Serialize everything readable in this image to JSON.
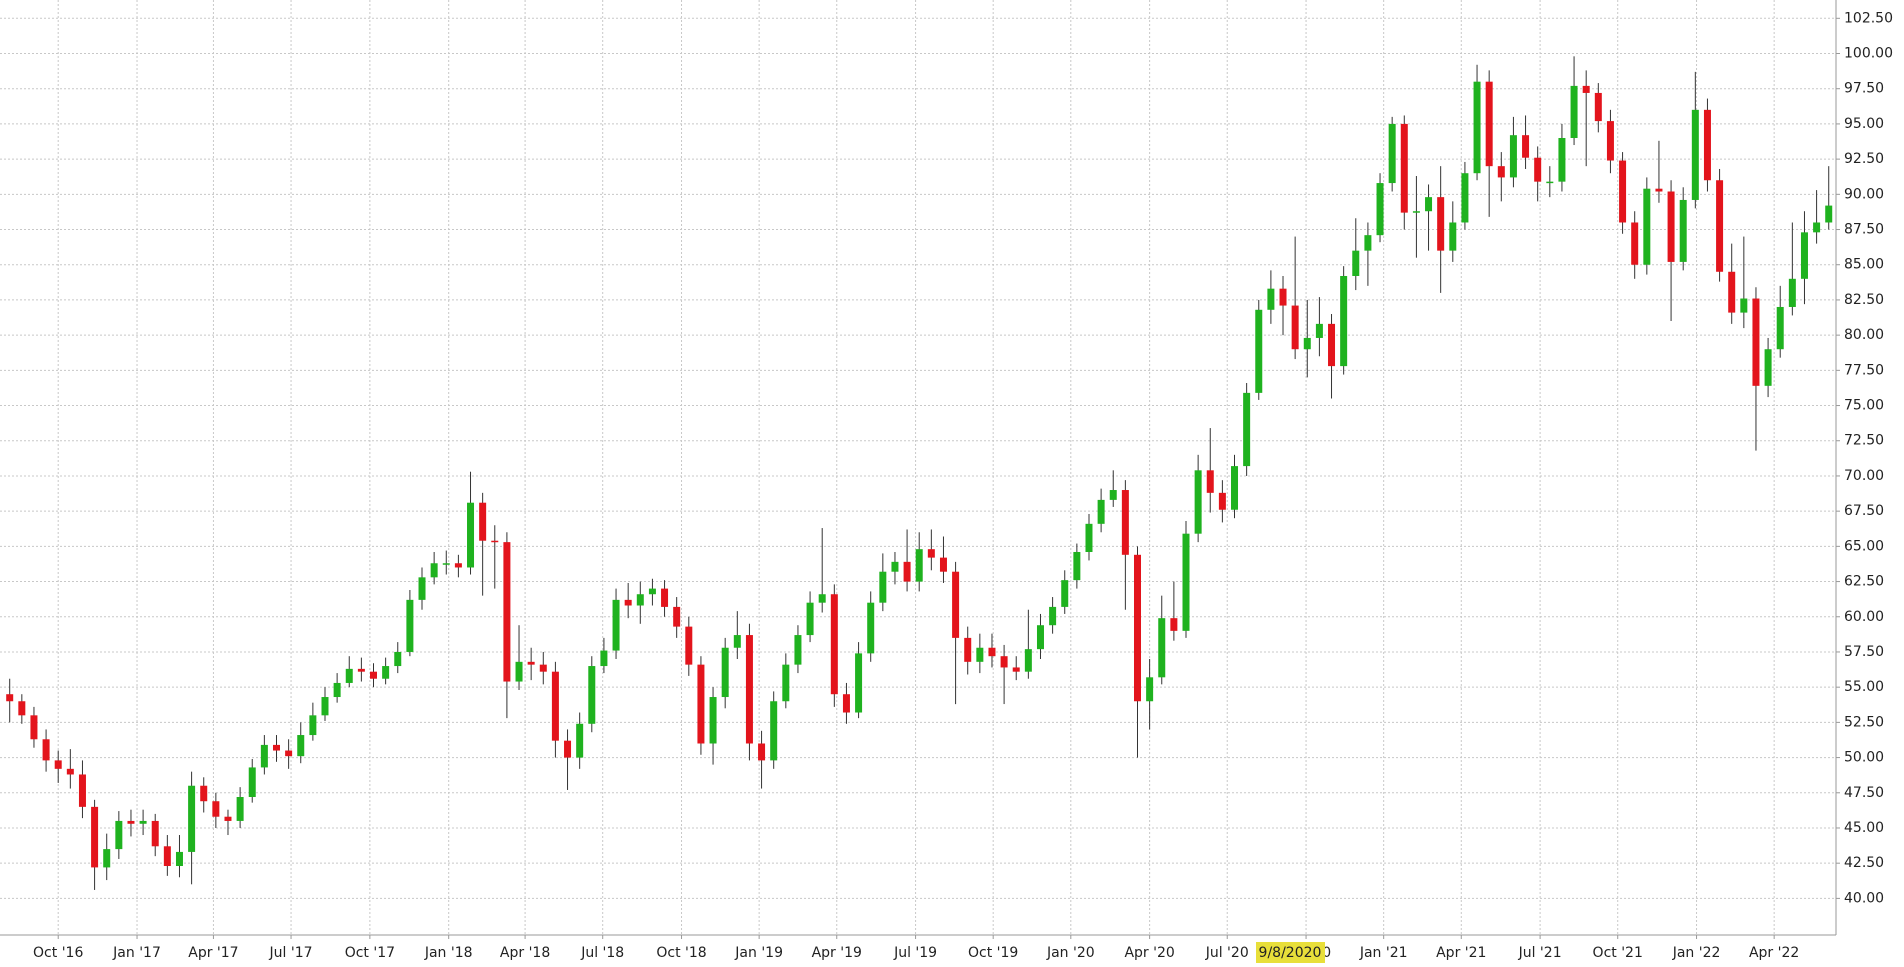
{
  "chart_data": {
    "type": "candlestick",
    "up_color": "#1fb21f",
    "down_color": "#e3141c",
    "wick_color": "#333333",
    "grid": true,
    "crosshair_label": "9/8/2020",
    "open": [
      54.5,
      54,
      53,
      51.3,
      49.8,
      49.2,
      48.8,
      46.5,
      42.2,
      43.5,
      45.5,
      45.3,
      45.5,
      43.7,
      42.3,
      43.3,
      48,
      46.9,
      45.8,
      45.5,
      47.2,
      49.3,
      50.9,
      50.5,
      50.1,
      51.6,
      53,
      54.3,
      55.3,
      56.3,
      56.1,
      55.6,
      56.5,
      57.5,
      61.2,
      62.8,
      63.8,
      63.8,
      63.5,
      68.1,
      65.4,
      65.3,
      55.4,
      56.8,
      56.6,
      56.1,
      51.2,
      50,
      52.4,
      56.5,
      57.6,
      61.2,
      60.8,
      61.6,
      62,
      60.7,
      59.3,
      56.6,
      51,
      54.3,
      57.8,
      58.7,
      51,
      49.8,
      54,
      56.6,
      58.7,
      61,
      61.6,
      54.5,
      53.2,
      57.4,
      61,
      63.2,
      63.9,
      62.5,
      64.8,
      64.2,
      63.2,
      58.5,
      56.8,
      57.8,
      57.2,
      56.4,
      56.1,
      57.7,
      59.4,
      60.7,
      62.6,
      64.6,
      66.6,
      68.3,
      69,
      64.4,
      54,
      55.7,
      59.9,
      59,
      65.9,
      70.4,
      68.8,
      67.6,
      70.7,
      75.9,
      81.8,
      83.3,
      82.1,
      79,
      79.8,
      80.8,
      77.8,
      84.2,
      86,
      87.1,
      90.8,
      95,
      88.7,
      88.8,
      89.8,
      86,
      88,
      91.5,
      98,
      92,
      91.2,
      94.2,
      92.6,
      90.9,
      90.9,
      94,
      97.7,
      97.2,
      95.2,
      92.4,
      88,
      85,
      90.4,
      90.2,
      85.2,
      89.6,
      96,
      91,
      84.5,
      81.6,
      82.6,
      76.4,
      79,
      82,
      84,
      87.3,
      88
    ],
    "high": [
      55.6,
      54.5,
      53.6,
      52,
      50.5,
      50.6,
      49.8,
      47,
      44.6,
      46.2,
      46.3,
      46.3,
      46,
      44.5,
      44.5,
      49,
      48.6,
      47.5,
      46.3,
      47.9,
      49.9,
      51.6,
      51.6,
      51.3,
      52.5,
      53.9,
      55,
      56,
      57.2,
      57.1,
      56.7,
      57.1,
      58.2,
      61.9,
      63.5,
      64.6,
      64.7,
      64.4,
      70.3,
      68.8,
      66.5,
      66,
      59.4,
      57.8,
      57.5,
      56.8,
      52,
      53.2,
      57.2,
      58.5,
      62,
      62.4,
      62.5,
      62.7,
      62.6,
      61.4,
      60,
      57.2,
      55,
      58.5,
      60.4,
      59.5,
      51.9,
      54.7,
      57.4,
      59.4,
      61.8,
      66.3,
      62.3,
      55.3,
      58.2,
      61.8,
      64.5,
      64.6,
      66.2,
      66,
      66.2,
      65.7,
      63.9,
      59.3,
      58.8,
      58.8,
      58,
      57.2,
      60.5,
      60.2,
      61.4,
      63.3,
      65.2,
      67.3,
      69.1,
      70.4,
      69.7,
      65,
      57,
      61.5,
      62.5,
      66.8,
      71.5,
      73.4,
      69.7,
      71.5,
      76.6,
      82.5,
      84.6,
      84.2,
      87,
      82.5,
      82.7,
      81.5,
      84.9,
      88.3,
      88,
      91.5,
      95.5,
      95.6,
      91.3,
      90.7,
      92,
      89.5,
      92.3,
      99.2,
      98.8,
      93,
      95.5,
      95.6,
      93.4,
      92,
      95,
      99.8,
      98.8,
      97.9,
      96,
      93,
      88.8,
      91.2,
      93.8,
      91,
      90.5,
      98.7,
      96.8,
      91.8,
      86.5,
      87,
      83.4,
      79.8,
      83.5,
      88,
      88.8,
      90.3,
      92
    ],
    "low": [
      52.5,
      52.4,
      50.7,
      49,
      48.2,
      47.8,
      45.7,
      40.6,
      41.3,
      42.8,
      44.4,
      44.5,
      43,
      41.6,
      41.5,
      41,
      46.1,
      45,
      44.5,
      45,
      46.8,
      48.8,
      49.7,
      49.2,
      49.6,
      51.2,
      52.6,
      53.9,
      55,
      55.4,
      55,
      55.2,
      56,
      57.2,
      60.5,
      62.3,
      63,
      62.8,
      63,
      61.5,
      62,
      52.8,
      54.8,
      55.5,
      55.2,
      50,
      47.7,
      49.2,
      51.8,
      56,
      57,
      59.9,
      59.5,
      60.8,
      60,
      58.5,
      55.8,
      50.2,
      49.5,
      53.5,
      57,
      49.8,
      47.8,
      49.2,
      53.5,
      56,
      58.2,
      60.3,
      53.6,
      52.4,
      52.8,
      56.8,
      60.4,
      62.3,
      61.8,
      61.8,
      63.3,
      62.4,
      53.8,
      55.9,
      56,
      56.4,
      53.8,
      55.5,
      55.6,
      57,
      58.8,
      60.2,
      62,
      64,
      66,
      67.8,
      60.5,
      50,
      52,
      55.2,
      58.3,
      58.5,
      65.3,
      67.4,
      66.7,
      67,
      70,
      75.4,
      80.8,
      80,
      78.3,
      77,
      78.5,
      75.5,
      77.2,
      83.2,
      83.5,
      86.6,
      90.2,
      87.5,
      85.5,
      86,
      83,
      85.2,
      87.5,
      91,
      88.4,
      89.5,
      90.5,
      91.8,
      89.5,
      89.8,
      90.2,
      93.5,
      92,
      94.4,
      91.5,
      87.2,
      84,
      84.3,
      89.4,
      81,
      84.6,
      89,
      90.2,
      83.8,
      80.8,
      80.5,
      71.8,
      75.6,
      78.4,
      81.4,
      82.2,
      86.5,
      87.5
    ],
    "close": [
      54,
      53,
      51.3,
      49.8,
      49.2,
      48.8,
      46.5,
      42.2,
      43.5,
      45.5,
      45.3,
      45.5,
      43.7,
      42.3,
      43.3,
      48,
      46.9,
      45.8,
      45.5,
      47.2,
      49.3,
      50.9,
      50.5,
      50.1,
      51.6,
      53,
      54.3,
      55.3,
      56.3,
      56.1,
      55.6,
      56.5,
      57.5,
      61.2,
      62.8,
      63.8,
      63.8,
      63.5,
      68.1,
      65.4,
      65.3,
      55.4,
      56.8,
      56.6,
      56.1,
      51.2,
      50,
      52.4,
      56.5,
      57.6,
      61.2,
      60.8,
      61.6,
      62,
      60.7,
      59.3,
      56.6,
      51,
      54.3,
      57.8,
      58.7,
      51,
      49.8,
      54,
      56.6,
      58.7,
      61,
      61.6,
      54.5,
      53.2,
      57.4,
      61,
      63.2,
      63.9,
      62.5,
      64.8,
      64.2,
      63.2,
      58.5,
      56.8,
      57.8,
      57.2,
      56.4,
      56.1,
      57.7,
      59.4,
      60.7,
      62.6,
      64.6,
      66.6,
      68.3,
      69,
      64.4,
      54,
      55.7,
      59.9,
      59,
      65.9,
      70.4,
      68.8,
      67.6,
      70.7,
      75.9,
      81.8,
      83.3,
      82.1,
      79,
      79.8,
      80.8,
      77.8,
      84.2,
      86,
      87.1,
      90.8,
      95,
      88.7,
      88.8,
      89.8,
      86,
      88,
      91.5,
      98,
      92,
      91.2,
      94.2,
      92.6,
      90.9,
      90.9,
      94,
      97.7,
      97.2,
      95.2,
      92.4,
      88,
      85,
      90.4,
      90.2,
      85.2,
      89.6,
      96,
      91,
      84.5,
      81.6,
      82.6,
      76.4,
      79,
      82,
      84,
      87.3,
      88,
      89.2
    ],
    "xlim": [
      -0.8,
      150.6
    ],
    "xticks": [
      {
        "value": 4,
        "label": "Oct '16"
      },
      {
        "value": 10.5,
        "label": "Jan '17"
      },
      {
        "value": 16.8,
        "label": "Apr '17"
      },
      {
        "value": 23.2,
        "label": "Jul '17"
      },
      {
        "value": 29.7,
        "label": "Oct '17"
      },
      {
        "value": 36.2,
        "label": "Jan '18"
      },
      {
        "value": 42.5,
        "label": "Apr '18"
      },
      {
        "value": 48.9,
        "label": "Jul '18"
      },
      {
        "value": 55.4,
        "label": "Oct '18"
      },
      {
        "value": 61.8,
        "label": "Jan '19"
      },
      {
        "value": 68.2,
        "label": "Apr '19"
      },
      {
        "value": 74.7,
        "label": "Jul '19"
      },
      {
        "value": 81.1,
        "label": "Oct '19"
      },
      {
        "value": 87.5,
        "label": "Jan '20"
      },
      {
        "value": 94,
        "label": "Apr '20"
      },
      {
        "value": 100.4,
        "label": "Jul '20"
      },
      {
        "value": 106.9,
        "label": "Oct '20"
      },
      {
        "value": 113.3,
        "label": "Jan '21"
      },
      {
        "value": 119.7,
        "label": "Apr '21"
      },
      {
        "value": 126.2,
        "label": "Jul '21"
      },
      {
        "value": 132.6,
        "label": "Oct '21"
      },
      {
        "value": 139.1,
        "label": "Jan '22"
      },
      {
        "value": 145.5,
        "label": "Apr '22"
      }
    ],
    "ylim": [
      37.4,
      103.8
    ],
    "yticks": [
      {
        "value": 40,
        "label": "40.00"
      },
      {
        "value": 42.5,
        "label": "42.50"
      },
      {
        "value": 45,
        "label": "45.00"
      },
      {
        "value": 47.5,
        "label": "47.50"
      },
      {
        "value": 50,
        "label": "50.00"
      },
      {
        "value": 52.5,
        "label": "52.50"
      },
      {
        "value": 55,
        "label": "55.00"
      },
      {
        "value": 57.5,
        "label": "57.50"
      },
      {
        "value": 60,
        "label": "60.00"
      },
      {
        "value": 62.5,
        "label": "62.50"
      },
      {
        "value": 65,
        "label": "65.00"
      },
      {
        "value": 67.5,
        "label": "67.50"
      },
      {
        "value": 70,
        "label": "70.00"
      },
      {
        "value": 72.5,
        "label": "72.50"
      },
      {
        "value": 75,
        "label": "75.00"
      },
      {
        "value": 77.5,
        "label": "77.50"
      },
      {
        "value": 80,
        "label": "80.00"
      },
      {
        "value": 82.5,
        "label": "82.50"
      },
      {
        "value": 85,
        "label": "85.00"
      },
      {
        "value": 87.5,
        "label": "87.50"
      },
      {
        "value": 90,
        "label": "90.00"
      },
      {
        "value": 92.5,
        "label": "92.50"
      },
      {
        "value": 95,
        "label": "95.00"
      },
      {
        "value": 97.5,
        "label": "97.50"
      },
      {
        "value": 100,
        "label": "100.00"
      },
      {
        "value": 102.5,
        "label": "102.50"
      }
    ]
  }
}
